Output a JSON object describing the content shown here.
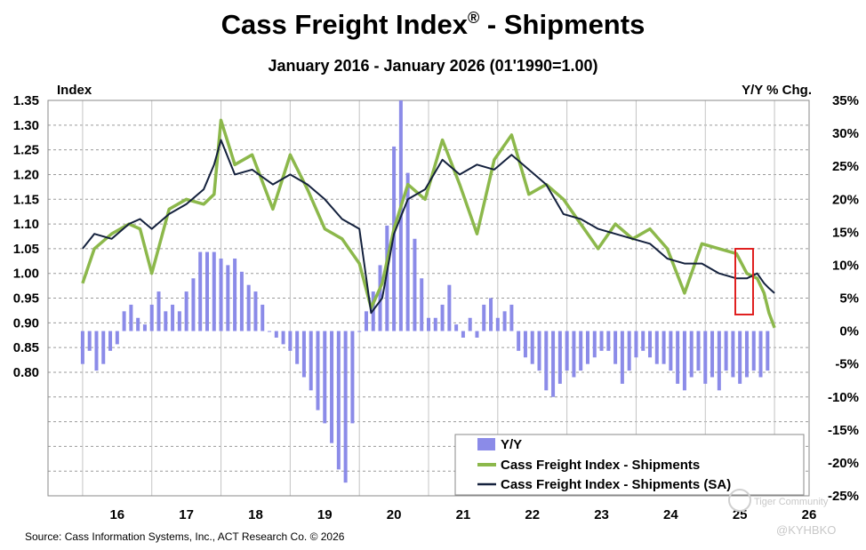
{
  "chart_data": {
    "type": "line",
    "title": "Cass Freight Index",
    "title_mark": "®",
    "title_suffix": " - Shipments",
    "subtitle": "January 2016 - January 2026 (01'1990=1.00)",
    "left_axis_label": "Index",
    "right_axis_label": "Y/Y % Chg.",
    "x_tick_labels": [
      "16",
      "17",
      "18",
      "19",
      "20",
      "21",
      "22",
      "23",
      "24",
      "25",
      "26"
    ],
    "x_range": [
      2015.5,
      2026.5
    ],
    "y_left_ticks": [
      "1.35",
      "1.30",
      "1.25",
      "1.20",
      "1.15",
      "1.10",
      "1.05",
      "1.00",
      "0.95",
      "0.90",
      "0.85",
      "0.80"
    ],
    "y_left_range": [
      0.55,
      1.35
    ],
    "y_right_ticks": [
      "35%",
      "30%",
      "25%",
      "20%",
      "15%",
      "10%",
      "5%",
      "0%",
      "-5%",
      "-10%",
      "-15%",
      "-20%",
      "-25%"
    ],
    "y_right_range": [
      -25,
      35
    ],
    "grid": true,
    "legend_position": "bottom-right",
    "colors": {
      "yy": "#8b8be8",
      "nsa": "#8cb84b",
      "sa": "#14213d",
      "highlight": "#e02020"
    },
    "series": [
      {
        "name": "Cass Freight Index - Shipments",
        "axis": "left",
        "x": [
          2016.0,
          2016.17,
          2016.42,
          2016.67,
          2016.83,
          2017.0,
          2017.25,
          2017.5,
          2017.75,
          2017.9,
          2018.0,
          2018.2,
          2018.45,
          2018.75,
          2019.0,
          2019.25,
          2019.5,
          2019.75,
          2020.0,
          2020.17,
          2020.33,
          2020.5,
          2020.7,
          2020.95,
          2021.2,
          2021.45,
          2021.7,
          2021.95,
          2022.2,
          2022.45,
          2022.7,
          2022.95,
          2023.2,
          2023.45,
          2023.7,
          2023.95,
          2024.2,
          2024.45,
          2024.7,
          2024.95,
          2025.2,
          2025.45,
          2025.6,
          2025.75,
          2025.85,
          2025.92,
          2026.0
        ],
        "values": [
          0.98,
          1.05,
          1.08,
          1.1,
          1.09,
          1.0,
          1.13,
          1.15,
          1.14,
          1.16,
          1.31,
          1.22,
          1.24,
          1.13,
          1.24,
          1.17,
          1.09,
          1.07,
          1.02,
          0.93,
          0.98,
          1.09,
          1.18,
          1.15,
          1.27,
          1.18,
          1.08,
          1.23,
          1.28,
          1.16,
          1.18,
          1.15,
          1.1,
          1.05,
          1.1,
          1.07,
          1.09,
          1.05,
          0.96,
          1.06,
          1.05,
          1.04,
          1.0,
          0.99,
          0.96,
          0.92,
          0.89
        ]
      },
      {
        "name": "Cass Freight Index - Shipments (SA)",
        "axis": "left",
        "x": [
          2016.0,
          2016.17,
          2016.42,
          2016.67,
          2016.83,
          2017.0,
          2017.25,
          2017.5,
          2017.75,
          2017.9,
          2018.0,
          2018.2,
          2018.45,
          2018.75,
          2019.0,
          2019.25,
          2019.5,
          2019.75,
          2020.0,
          2020.17,
          2020.33,
          2020.5,
          2020.7,
          2020.95,
          2021.2,
          2021.45,
          2021.7,
          2021.95,
          2022.2,
          2022.45,
          2022.7,
          2022.95,
          2023.2,
          2023.45,
          2023.7,
          2023.95,
          2024.2,
          2024.45,
          2024.7,
          2024.95,
          2025.2,
          2025.45,
          2025.6,
          2025.75,
          2025.85,
          2025.92,
          2026.0
        ],
        "values": [
          1.05,
          1.08,
          1.07,
          1.1,
          1.11,
          1.09,
          1.12,
          1.14,
          1.17,
          1.22,
          1.27,
          1.2,
          1.21,
          1.18,
          1.2,
          1.18,
          1.15,
          1.11,
          1.09,
          0.92,
          0.95,
          1.08,
          1.15,
          1.17,
          1.23,
          1.2,
          1.22,
          1.21,
          1.24,
          1.21,
          1.18,
          1.12,
          1.11,
          1.09,
          1.08,
          1.07,
          1.06,
          1.03,
          1.02,
          1.02,
          1.0,
          0.99,
          0.99,
          1.0,
          0.98,
          0.97,
          0.96
        ]
      },
      {
        "name": "Y/Y",
        "axis": "right",
        "type": "bar",
        "x": [
          2016.0,
          2016.1,
          2016.2,
          2016.3,
          2016.4,
          2016.5,
          2016.6,
          2016.7,
          2016.8,
          2016.9,
          2017.0,
          2017.1,
          2017.2,
          2017.3,
          2017.4,
          2017.5,
          2017.6,
          2017.7,
          2017.8,
          2017.9,
          2018.0,
          2018.1,
          2018.2,
          2018.3,
          2018.4,
          2018.5,
          2018.6,
          2018.7,
          2018.8,
          2018.9,
          2019.0,
          2019.1,
          2019.2,
          2019.3,
          2019.4,
          2019.5,
          2019.6,
          2019.7,
          2019.8,
          2019.9,
          2020.0,
          2020.1,
          2020.2,
          2020.3,
          2020.4,
          2020.5,
          2020.6,
          2020.7,
          2020.8,
          2020.9,
          2021.0,
          2021.1,
          2021.2,
          2021.3,
          2021.4,
          2021.5,
          2021.6,
          2021.7,
          2021.8,
          2021.9,
          2022.0,
          2022.1,
          2022.2,
          2022.3,
          2022.4,
          2022.5,
          2022.6,
          2022.7,
          2022.8,
          2022.9,
          2023.0,
          2023.1,
          2023.2,
          2023.3,
          2023.4,
          2023.5,
          2023.6,
          2023.7,
          2023.8,
          2023.9,
          2024.0,
          2024.1,
          2024.2,
          2024.3,
          2024.4,
          2024.5,
          2024.6,
          2024.7,
          2024.8,
          2024.9,
          2025.0,
          2025.1,
          2025.2,
          2025.3,
          2025.4,
          2025.5,
          2025.6,
          2025.7,
          2025.8,
          2025.9
        ],
        "values": [
          -5,
          -3,
          -6,
          -5,
          -3,
          -2,
          3,
          4,
          2,
          1,
          4,
          6,
          3,
          4,
          3,
          6,
          8,
          12,
          12,
          12,
          11,
          10,
          11,
          9,
          7,
          6,
          4,
          0,
          -1,
          -2,
          -3,
          -5,
          -7,
          -9,
          -12,
          -14,
          -17,
          -21,
          -23,
          -14,
          0,
          3,
          6,
          10,
          16,
          28,
          35,
          24,
          14,
          8,
          2,
          2,
          4,
          7,
          1,
          -1,
          2,
          -1,
          4,
          5,
          2,
          3,
          4,
          -3,
          -4,
          -5,
          -6,
          -9,
          -10,
          -8,
          -6,
          -7,
          -6,
          -5,
          -4,
          -3,
          -3,
          -5,
          -8,
          -6,
          -4,
          -3,
          -4,
          -5,
          -5,
          -6,
          -8,
          -9,
          -7,
          -6,
          -8,
          -7,
          -9,
          -6,
          -7,
          -8,
          -7,
          -6,
          -7,
          -6
        ]
      }
    ]
  },
  "source": "Source: Cass Information Systems, Inc., ACT Research Co. © 2026",
  "watermark": {
    "community": "Tiger Community",
    "handle": "@KYHBKO"
  },
  "legend": {
    "yy": "Y/Y",
    "nsa": "Cass Freight Index - Shipments",
    "sa": "Cass Freight Index - Shipments (SA)"
  }
}
